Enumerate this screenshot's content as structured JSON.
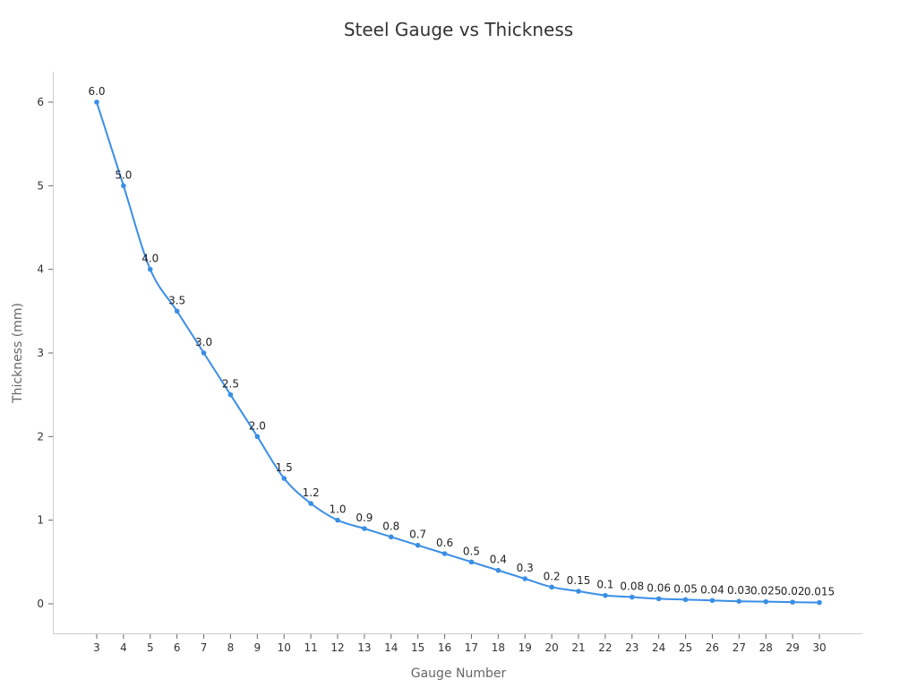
{
  "chart_data": {
    "type": "line",
    "title": "Steel Gauge vs Thickness",
    "xlabel": "Gauge Number",
    "ylabel": "Thickness (mm)",
    "x": [
      3,
      4,
      5,
      6,
      7,
      8,
      9,
      10,
      11,
      12,
      13,
      14,
      15,
      16,
      17,
      18,
      19,
      20,
      21,
      22,
      23,
      24,
      25,
      26,
      27,
      28,
      29,
      30
    ],
    "series": [
      {
        "name": "Thickness (mm)",
        "values": [
          6.0,
          5.0,
          4.0,
          3.5,
          3.0,
          2.5,
          2.0,
          1.5,
          1.2,
          1.0,
          0.9,
          0.8,
          0.7,
          0.6,
          0.5,
          0.4,
          0.3,
          0.2,
          0.15,
          0.1,
          0.08,
          0.06,
          0.05,
          0.04,
          0.03,
          0.025,
          0.02,
          0.015
        ],
        "labels": [
          "6.0",
          "5.0",
          "4.0",
          "3.5",
          "3.0",
          "2.5",
          "2.0",
          "1.5",
          "1.2",
          "1.0",
          "0.9",
          "0.8",
          "0.7",
          "0.6",
          "0.5",
          "0.4",
          "0.3",
          "0.2",
          "0.15",
          "0.1",
          "0.08",
          "0.06",
          "0.05",
          "0.04",
          "0.03",
          "0.025",
          "0.02",
          "0.015"
        ],
        "color": "#3a8ee6"
      }
    ],
    "yticks": [
      0,
      1,
      2,
      3,
      4,
      5,
      6
    ],
    "xticks": [
      3,
      4,
      5,
      6,
      7,
      8,
      9,
      10,
      11,
      12,
      13,
      14,
      15,
      16,
      17,
      18,
      19,
      20,
      21,
      22,
      23,
      24,
      25,
      26,
      27,
      28,
      29,
      30
    ],
    "ylim": [
      -0.35,
      6.4
    ],
    "xlim": [
      1.35,
      31.6
    ],
    "grid": false,
    "legend": "none",
    "smooth": true
  }
}
